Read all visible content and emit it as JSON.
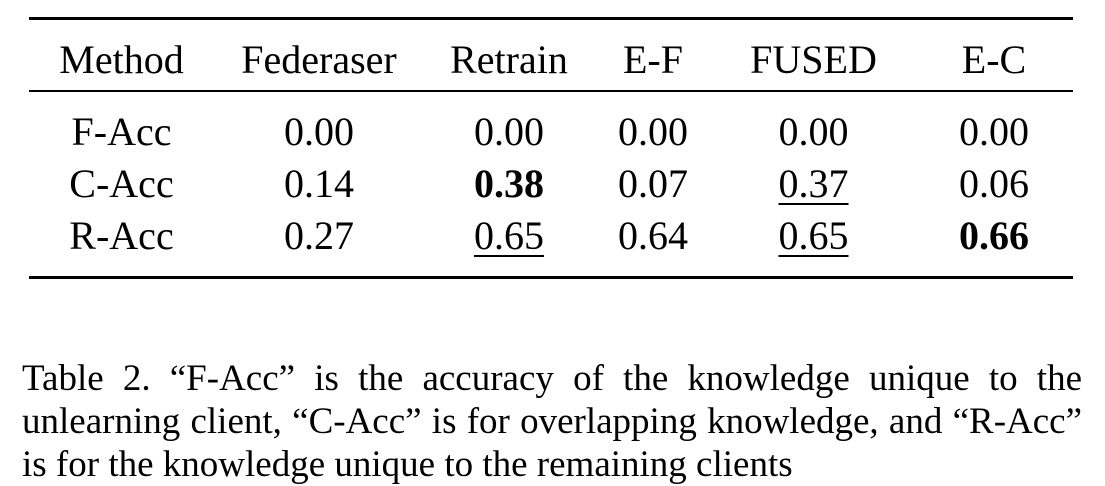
{
  "table": {
    "columns": [
      "Method",
      "Federaser",
      "Retrain",
      "E-F",
      "FUSED",
      "E-C"
    ],
    "rows": [
      {
        "label": "F-Acc",
        "cells": [
          {
            "value": "0.00",
            "bold": false,
            "underline": false
          },
          {
            "value": "0.00",
            "bold": false,
            "underline": false
          },
          {
            "value": "0.00",
            "bold": false,
            "underline": false
          },
          {
            "value": "0.00",
            "bold": false,
            "underline": false
          },
          {
            "value": "0.00",
            "bold": false,
            "underline": false
          }
        ]
      },
      {
        "label": "C-Acc",
        "cells": [
          {
            "value": "0.14",
            "bold": false,
            "underline": false
          },
          {
            "value": "0.38",
            "bold": true,
            "underline": false
          },
          {
            "value": "0.07",
            "bold": false,
            "underline": false
          },
          {
            "value": "0.37",
            "bold": false,
            "underline": true
          },
          {
            "value": "0.06",
            "bold": false,
            "underline": false
          }
        ]
      },
      {
        "label": "R-Acc",
        "cells": [
          {
            "value": "0.27",
            "bold": false,
            "underline": false
          },
          {
            "value": "0.65",
            "bold": false,
            "underline": true
          },
          {
            "value": "0.64",
            "bold": false,
            "underline": false
          },
          {
            "value": "0.65",
            "bold": false,
            "underline": true
          },
          {
            "value": "0.66",
            "bold": true,
            "underline": false
          }
        ]
      }
    ]
  },
  "caption": {
    "text": "Table 2.  “F-Acc” is the accuracy of the knowledge unique to the unlearning client, “C-Acc” is for overlapping knowledge, and “R-Acc” is for the knowledge unique to the remaining clients"
  }
}
